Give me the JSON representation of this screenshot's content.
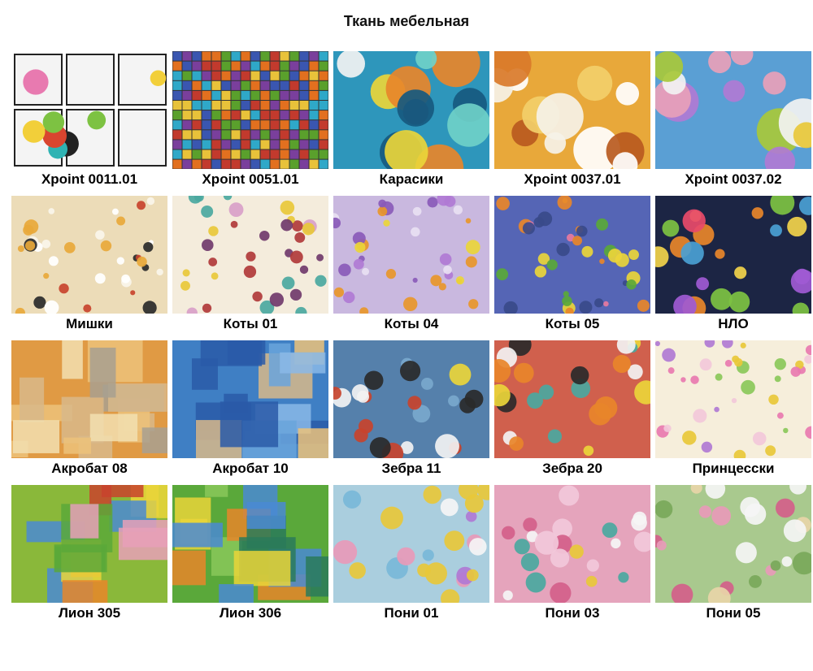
{
  "page": {
    "title": "Ткань мебельная"
  },
  "swatches": [
    {
      "label": "Xpoint 0011.01",
      "pattern": "comic",
      "motif": "md",
      "base": "#ffffff",
      "palette": [
        "#d9452f",
        "#7dc242",
        "#2fb3b3",
        "#f2cf3a",
        "#e87ab0",
        "#222222"
      ]
    },
    {
      "label": "Xpoint 0051.01",
      "pattern": "weave",
      "motif": "sm",
      "base": "#333333",
      "palette": [
        "#3a56b0",
        "#e2701f",
        "#5aa02c",
        "#c23a2d",
        "#7a3f9c",
        "#e8c23a",
        "#2fa8c8"
      ]
    },
    {
      "label": "Карасики",
      "pattern": "print",
      "motif": "lg",
      "base": "#2e96bb",
      "palette": [
        "#17597f",
        "#e8862a",
        "#ead53a",
        "#f2f2f2",
        "#3a4a6b",
        "#6fd0c8"
      ]
    },
    {
      "label": "Xpoint 0037.01",
      "pattern": "print",
      "motif": "lg",
      "base": "#e8a83a",
      "palette": [
        "#f5f2e8",
        "#d97a2a",
        "#f2cf6a",
        "#b85a1f",
        "#ffffff"
      ]
    },
    {
      "label": "Xpoint 0037.02",
      "pattern": "print",
      "motif": "lg",
      "base": "#5a9fd4",
      "palette": [
        "#e8a0b8",
        "#a8c83a",
        "#e8862a",
        "#f2f2f2",
        "#b07ad4",
        "#e8c83a"
      ]
    },
    {
      "label": "Мишки",
      "pattern": "print",
      "motif": "sm",
      "base": "#ecdcb8",
      "palette": [
        "#faf5ea",
        "#c8432d",
        "#2a2a2a",
        "#e8a83a",
        "#ffffff"
      ]
    },
    {
      "label": "Коты 01",
      "pattern": "print",
      "motif": "sm",
      "base": "#f4ecdc",
      "palette": [
        "#b03a3a",
        "#4aa8a0",
        "#703a6b",
        "#d8a0c8",
        "#e8c83a"
      ]
    },
    {
      "label": "Коты 04",
      "pattern": "print",
      "motif": "sm",
      "base": "#c9b8df",
      "palette": [
        "#e8962a",
        "#8a5ab8",
        "#ead53a",
        "#e8e0f2",
        "#b07ad4"
      ]
    },
    {
      "label": "Коты 05",
      "pattern": "print",
      "motif": "sm",
      "base": "#5565b5",
      "palette": [
        "#e8862a",
        "#5aa83a",
        "#e87aa0",
        "#ead53a",
        "#3a4a8a"
      ]
    },
    {
      "label": "НЛО",
      "pattern": "print",
      "motif": "md",
      "base": "#1c2544",
      "palette": [
        "#7dc242",
        "#e8862a",
        "#a05ad4",
        "#f2d24b",
        "#4a9fd4",
        "#e84a6a"
      ]
    },
    {
      "label": "Акробат 08",
      "pattern": "patch",
      "motif": "md",
      "base": "#e09a44",
      "palette": [
        "#ecc27a",
        "#d8b88a",
        "#b87a2a",
        "#a8a090",
        "#f2dfb0"
      ]
    },
    {
      "label": "Акробат 10",
      "pattern": "patch",
      "motif": "md",
      "base": "#3f7fc4",
      "palette": [
        "#6aa4dc",
        "#d8b88a",
        "#2a5aa8",
        "#ecc27a",
        "#8ab8e8"
      ]
    },
    {
      "label": "Зебра 11",
      "pattern": "print",
      "motif": "md",
      "base": "#5580ab",
      "palette": [
        "#f2f2f2",
        "#2a2a2a",
        "#ead53a",
        "#c8432d",
        "#7aa8cc"
      ]
    },
    {
      "label": "Зебра 20",
      "pattern": "print",
      "motif": "md",
      "base": "#d0604d",
      "palette": [
        "#f2f2f2",
        "#2a2a2a",
        "#ead53a",
        "#e8862a",
        "#4aa8a0"
      ]
    },
    {
      "label": "Принцесски",
      "pattern": "print",
      "motif": "sm",
      "base": "#f6eedb",
      "palette": [
        "#e87ab0",
        "#8ac85a",
        "#b07ad4",
        "#f2c8da",
        "#e8c83a"
      ]
    },
    {
      "label": "Лион 305",
      "pattern": "patch",
      "motif": "md",
      "base": "#8ab83a",
      "palette": [
        "#e8862a",
        "#ead53a",
        "#4a8ad4",
        "#c8432d",
        "#5aa83a",
        "#e8a0b8"
      ]
    },
    {
      "label": "Лион 306",
      "pattern": "patch",
      "motif": "md",
      "base": "#5aa83a",
      "palette": [
        "#4a8ad4",
        "#ead53a",
        "#e8862a",
        "#8ac85a",
        "#2a7a5a"
      ]
    },
    {
      "label": "Пони 01",
      "pattern": "print",
      "motif": "md",
      "base": "#aacede",
      "palette": [
        "#e89ab8",
        "#f5f5f5",
        "#b07ad4",
        "#7ab8d8",
        "#e8c83a"
      ]
    },
    {
      "label": "Пони 03",
      "pattern": "print",
      "motif": "md",
      "base": "#e5a4bc",
      "palette": [
        "#d4608a",
        "#f5f5f5",
        "#4aa8a0",
        "#f2c8da",
        "#e8c83a"
      ]
    },
    {
      "label": "Пони 05",
      "pattern": "print",
      "motif": "md",
      "base": "#a9c98e",
      "palette": [
        "#e89ab8",
        "#f5f5f5",
        "#7aa85a",
        "#d4608a",
        "#e8d5a8"
      ]
    }
  ]
}
